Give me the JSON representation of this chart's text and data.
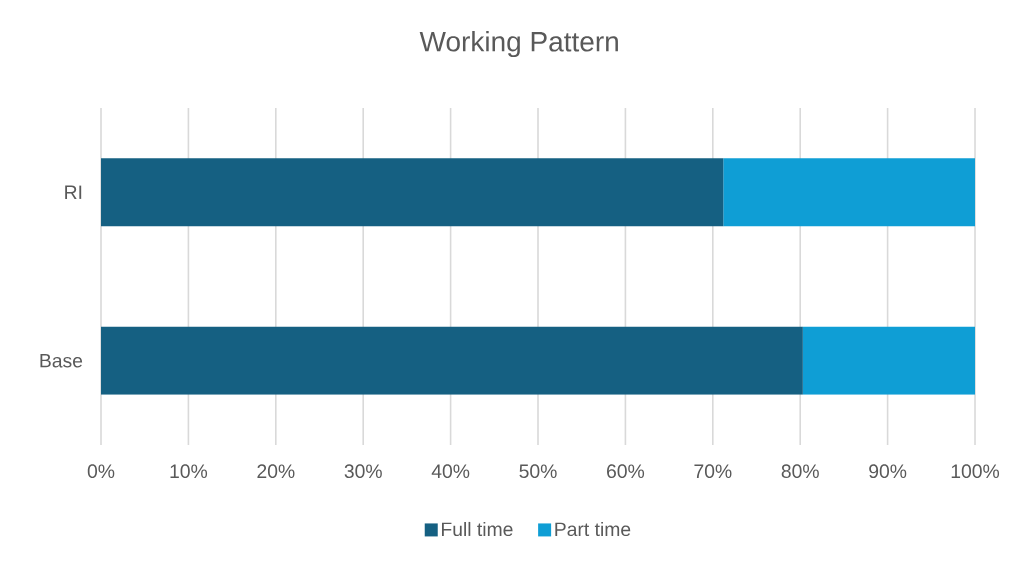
{
  "chart_data": {
    "type": "bar",
    "orientation": "horizontal",
    "stacked": true,
    "title": "Working Pattern",
    "categories": [
      "RI",
      "Base"
    ],
    "series": [
      {
        "name": "Full time",
        "color": "#156082",
        "values": [
          71.2,
          80.3
        ]
      },
      {
        "name": "Part time",
        "color": "#0F9ED5",
        "values": [
          28.8,
          19.7
        ]
      }
    ],
    "xlim": [
      0,
      100
    ],
    "xticks": [
      {
        "value": 0,
        "label": "0%"
      },
      {
        "value": 10,
        "label": "10%"
      },
      {
        "value": 20,
        "label": "20%"
      },
      {
        "value": 30,
        "label": "30%"
      },
      {
        "value": 40,
        "label": "40%"
      },
      {
        "value": 50,
        "label": "50%"
      },
      {
        "value": 60,
        "label": "60%"
      },
      {
        "value": 70,
        "label": "70%"
      },
      {
        "value": 80,
        "label": "80%"
      },
      {
        "value": 90,
        "label": "90%"
      },
      {
        "value": 100,
        "label": "100%"
      }
    ],
    "grid": "x",
    "legend": "bottom"
  }
}
